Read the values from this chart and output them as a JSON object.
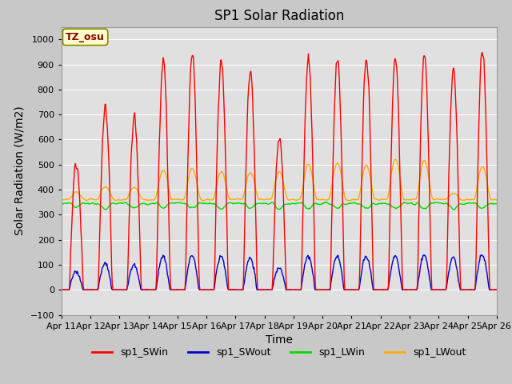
{
  "title": "SP1 Solar Radiation",
  "ylabel": "Solar Radiation (W/m2)",
  "xlabel": "Time",
  "ylim": [
    -100,
    1050
  ],
  "yticks": [
    -100,
    0,
    100,
    200,
    300,
    400,
    500,
    600,
    700,
    800,
    900,
    1000
  ],
  "num_days": 15,
  "xtick_labels": [
    "Apr 11",
    "Apr 12",
    "Apr 13",
    "Apr 14",
    "Apr 15",
    "Apr 16",
    "Apr 17",
    "Apr 18",
    "Apr 19",
    "Apr 20",
    "Apr 21",
    "Apr 22",
    "Apr 23",
    "Apr 24",
    "Apr 25",
    "Apr 26"
  ],
  "colors": {
    "sp1_SWin": "#ff0000",
    "sp1_SWout": "#0000cc",
    "sp1_LWin": "#00dd00",
    "sp1_LWout": "#ffaa00"
  },
  "legend_labels": [
    "sp1_SWin",
    "sp1_SWout",
    "sp1_LWin",
    "sp1_LWout"
  ],
  "annotation_text": "TZ_osu",
  "annotation_color": "#880000",
  "annotation_bg": "#ffffcc",
  "annotation_border": "#888800",
  "fig_bg_color": "#c8c8c8",
  "plot_bg_color": "#e0e0e0",
  "grid_color": "#ffffff",
  "title_fontsize": 12,
  "label_fontsize": 10,
  "tick_fontsize": 8
}
